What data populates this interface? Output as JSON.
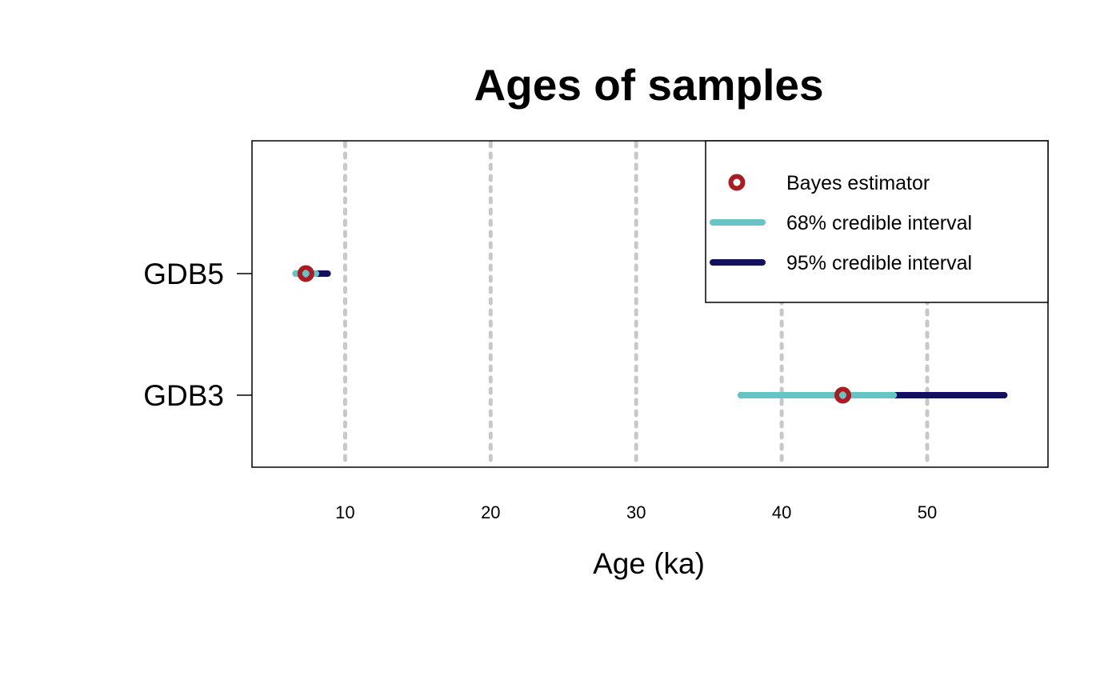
{
  "chart_data": {
    "type": "forest",
    "title": "Ages of samples",
    "xlabel": "Age (ka)",
    "ylabel": "",
    "xlim": [
      3.6,
      58.3
    ],
    "x_ticks": [
      10,
      20,
      30,
      40,
      50
    ],
    "x_tick_labels": [
      "10",
      "20",
      "30",
      "40",
      "50"
    ],
    "grid": "vertical dotted lines at x ticks",
    "legend_position": "top-right",
    "colors": {
      "bayes_estimator": "#AA1C24",
      "ci68": "#66C4C6",
      "ci95": "#141060",
      "grid": "#C8C8C8"
    },
    "categories": [
      "GDB5",
      "GDB3"
    ],
    "samples": [
      {
        "name": "GDB5",
        "estimate": 7.3,
        "ci68": [
          6.6,
          8.0
        ],
        "ci95": [
          6.6,
          8.8
        ]
      },
      {
        "name": "GDB3",
        "estimate": 44.2,
        "ci68": [
          37.2,
          47.7
        ],
        "ci95": [
          37.2,
          55.3
        ]
      }
    ],
    "legend": {
      "items": [
        {
          "key": "bayes_estimator",
          "label": "Bayes estimator",
          "symbol": "point"
        },
        {
          "key": "ci68",
          "label": "68% credible interval",
          "symbol": "line"
        },
        {
          "key": "ci95",
          "label": "95% credible interval",
          "symbol": "line"
        }
      ]
    }
  }
}
